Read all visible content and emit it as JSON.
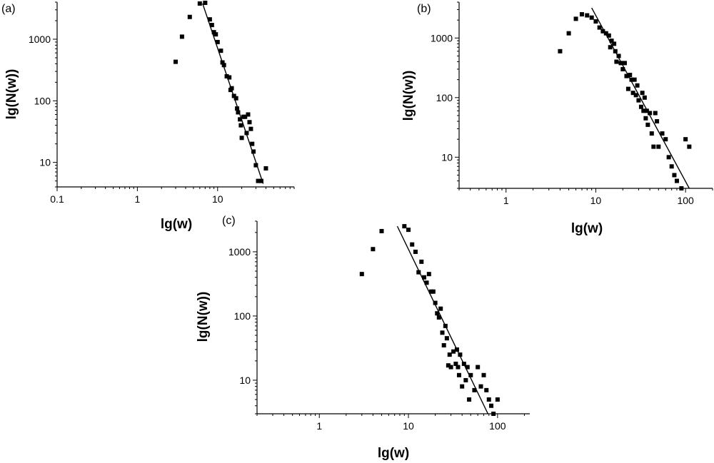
{
  "chart_data": [
    {
      "type": "scatter",
      "panel_label": "(a)",
      "xlabel": "lg(w)",
      "ylabel": "lg(N(w))",
      "x_scale": "log",
      "y_scale": "log",
      "xlim": [
        0.1,
        90
      ],
      "ylim": [
        4,
        4000
      ],
      "x_ticks": [
        0.1,
        1,
        10
      ],
      "x_tick_labels": [
        "0.1",
        "1",
        "10"
      ],
      "y_ticks": [
        10,
        100,
        1000
      ],
      "y_tick_labels": [
        "10",
        "100",
        "1000"
      ],
      "points": [
        [
          3,
          430
        ],
        [
          3.6,
          1100
        ],
        [
          4.5,
          2300
        ],
        [
          6,
          3800
        ],
        [
          7,
          3900
        ],
        [
          8,
          2100
        ],
        [
          8.5,
          1700
        ],
        [
          9,
          1300
        ],
        [
          9.5,
          1200
        ],
        [
          10,
          900
        ],
        [
          11,
          650
        ],
        [
          11.5,
          420
        ],
        [
          12,
          380
        ],
        [
          13,
          250
        ],
        [
          14,
          240
        ],
        [
          14.5,
          150
        ],
        [
          15,
          160
        ],
        [
          16,
          120
        ],
        [
          17,
          110
        ],
        [
          17.5,
          75
        ],
        [
          18,
          65
        ],
        [
          19,
          50
        ],
        [
          19.5,
          40
        ],
        [
          20,
          25
        ],
        [
          21,
          55
        ],
        [
          22,
          55
        ],
        [
          23,
          30
        ],
        [
          24,
          60
        ],
        [
          25,
          45
        ],
        [
          26,
          35
        ],
        [
          27,
          20
        ],
        [
          28,
          15
        ],
        [
          30,
          9
        ],
        [
          32,
          5
        ],
        [
          35,
          5
        ],
        [
          40,
          8
        ]
      ],
      "fit_line": [
        [
          6.5,
          3800
        ],
        [
          37,
          4.5
        ]
      ]
    },
    {
      "type": "scatter",
      "panel_label": "(b)",
      "xlabel": "lg(w)",
      "ylabel": "lg(N(w))",
      "x_scale": "log",
      "y_scale": "log",
      "xlim": [
        0.3,
        200
      ],
      "ylim": [
        3,
        4000
      ],
      "x_ticks": [
        1,
        10,
        100
      ],
      "x_tick_labels": [
        "1",
        "10",
        "100"
      ],
      "y_ticks": [
        10,
        100,
        1000
      ],
      "y_tick_labels": [
        "10",
        "100",
        "1000"
      ],
      "points": [
        [
          4,
          600
        ],
        [
          5,
          1200
        ],
        [
          6,
          2100
        ],
        [
          7,
          2500
        ],
        [
          8,
          2400
        ],
        [
          9,
          2200
        ],
        [
          10,
          1900
        ],
        [
          11,
          1500
        ],
        [
          12,
          1300
        ],
        [
          13,
          1200
        ],
        [
          14,
          1100
        ],
        [
          14.5,
          700
        ],
        [
          15,
          900
        ],
        [
          16,
          800
        ],
        [
          16.5,
          600
        ],
        [
          17,
          400
        ],
        [
          18,
          500
        ],
        [
          19,
          380
        ],
        [
          20,
          300
        ],
        [
          21,
          380
        ],
        [
          22,
          230
        ],
        [
          23,
          140
        ],
        [
          24,
          240
        ],
        [
          25,
          200
        ],
        [
          26,
          120
        ],
        [
          27,
          200
        ],
        [
          28,
          110
        ],
        [
          29,
          160
        ],
        [
          30,
          90
        ],
        [
          32,
          70
        ],
        [
          33,
          120
        ],
        [
          34,
          60
        ],
        [
          35,
          100
        ],
        [
          36,
          45
        ],
        [
          37,
          60
        ],
        [
          38,
          35
        ],
        [
          40,
          55
        ],
        [
          42,
          25
        ],
        [
          44,
          15
        ],
        [
          46,
          55
        ],
        [
          48,
          40
        ],
        [
          50,
          15
        ],
        [
          55,
          25
        ],
        [
          60,
          20
        ],
        [
          65,
          10
        ],
        [
          70,
          7
        ],
        [
          75,
          5
        ],
        [
          80,
          4
        ],
        [
          90,
          3
        ],
        [
          100,
          20
        ],
        [
          110,
          15
        ]
      ],
      "fit_line": [
        [
          9,
          3200
        ],
        [
          110,
          3
        ]
      ]
    },
    {
      "type": "scatter",
      "panel_label": "(c)",
      "xlabel": "lg(w)",
      "ylabel": "lg(N(w))",
      "x_scale": "log",
      "y_scale": "log",
      "xlim": [
        0.2,
        230
      ],
      "ylim": [
        3,
        3000
      ],
      "x_ticks": [
        1,
        10,
        100
      ],
      "x_tick_labels": [
        "1",
        "10",
        "100"
      ],
      "y_ticks": [
        10,
        100,
        1000
      ],
      "y_tick_labels": [
        "10",
        "100",
        "1000"
      ],
      "points": [
        [
          3,
          450
        ],
        [
          4,
          1100
        ],
        [
          5,
          2100
        ],
        [
          9,
          2500
        ],
        [
          10,
          2200
        ],
        [
          11,
          1300
        ],
        [
          12,
          1000
        ],
        [
          13,
          480
        ],
        [
          14,
          700
        ],
        [
          15,
          400
        ],
        [
          16,
          330
        ],
        [
          17,
          450
        ],
        [
          18,
          240
        ],
        [
          19,
          240
        ],
        [
          20,
          160
        ],
        [
          21,
          110
        ],
        [
          22,
          95
        ],
        [
          23,
          130
        ],
        [
          24,
          55
        ],
        [
          25,
          35
        ],
        [
          26,
          70
        ],
        [
          27,
          45
        ],
        [
          28,
          17
        ],
        [
          29,
          25
        ],
        [
          30,
          16
        ],
        [
          32,
          28
        ],
        [
          34,
          18
        ],
        [
          35,
          30
        ],
        [
          36,
          16
        ],
        [
          37,
          12
        ],
        [
          38,
          25
        ],
        [
          40,
          8
        ],
        [
          42,
          18
        ],
        [
          44,
          10
        ],
        [
          46,
          16
        ],
        [
          48,
          5
        ],
        [
          50,
          12
        ],
        [
          55,
          7
        ],
        [
          60,
          16
        ],
        [
          65,
          8
        ],
        [
          70,
          12
        ],
        [
          75,
          7
        ],
        [
          80,
          5
        ],
        [
          85,
          4
        ],
        [
          90,
          3
        ],
        [
          100,
          5
        ]
      ],
      "fit_line": [
        [
          7.5,
          2500
        ],
        [
          78,
          3
        ]
      ]
    }
  ]
}
